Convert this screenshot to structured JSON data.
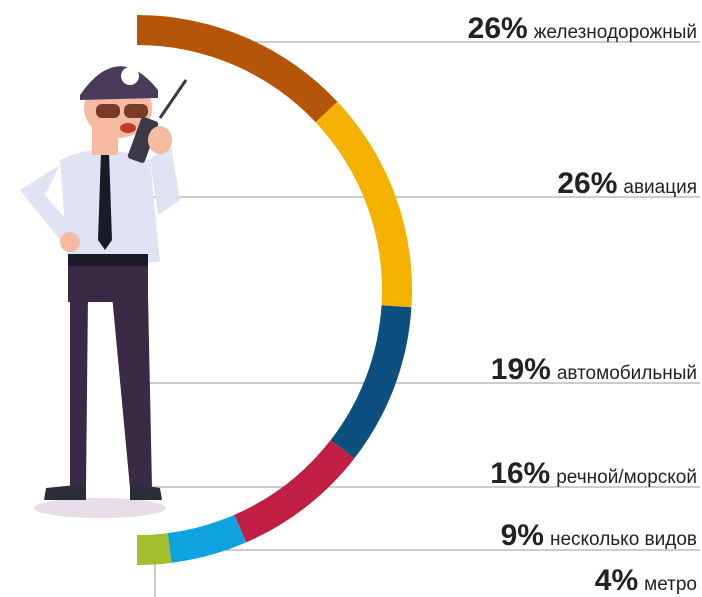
{
  "chart_data": {
    "type": "donut",
    "categories": [
      "железнодорожный",
      "авиация",
      "автомобильный",
      "речной/морской",
      "несколько видов",
      "метро"
    ],
    "values": [
      26,
      26,
      19,
      16,
      9,
      4
    ],
    "value_labels": [
      "26%",
      "26%",
      "19%",
      "16%",
      "9%",
      "4%"
    ],
    "colors": [
      "#b5550a",
      "#f5b100",
      "#0d5080",
      "#c01e42",
      "#0ea2df",
      "#a2c02e"
    ]
  }
}
